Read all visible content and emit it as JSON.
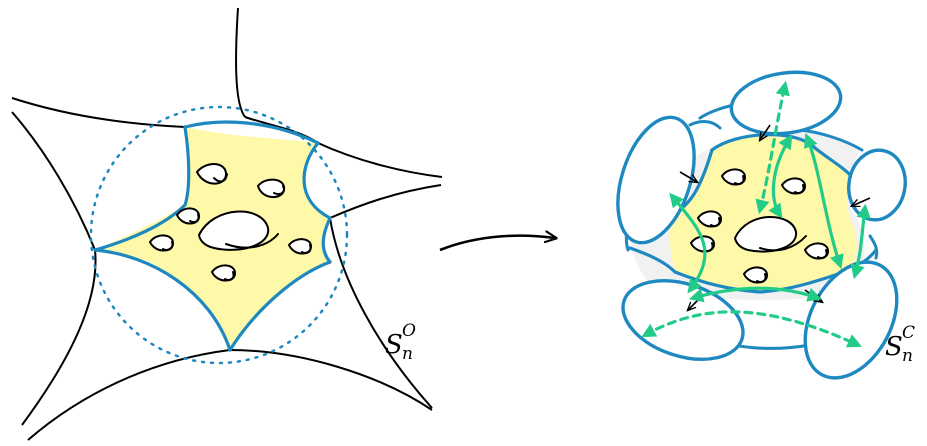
{
  "labels": {
    "left_surface": {
      "main": "S",
      "sub": "n",
      "sup": "O"
    },
    "right_surface": {
      "main": "S",
      "sub": "n",
      "sup": "C"
    }
  },
  "colors": {
    "outline": "#000000",
    "boundary": "#1e88c0",
    "core_fill": "#fdf9a8",
    "cap_fill": "#f1f1f1",
    "arrow_green": "#22cc88"
  }
}
